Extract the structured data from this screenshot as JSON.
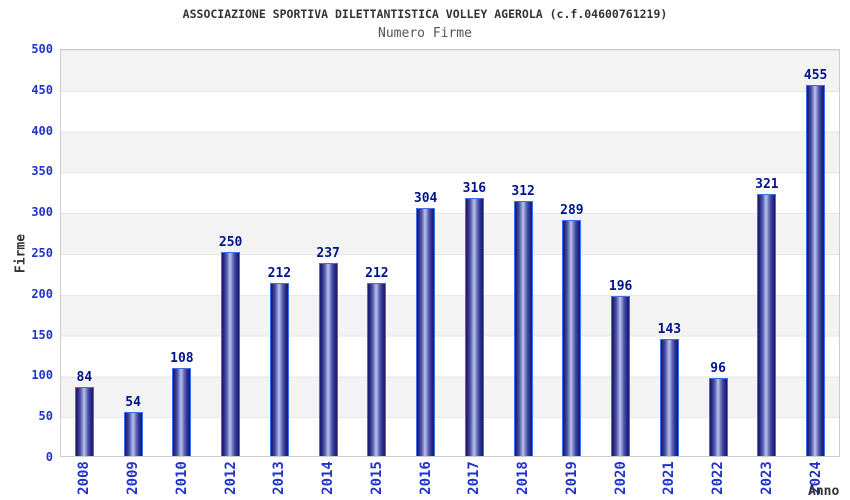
{
  "chart_data": {
    "type": "bar",
    "title": "ASSOCIAZIONE SPORTIVA DILETTANTISTICA VOLLEY AGEROLA (c.f.04600761219)",
    "subtitle": "Numero Firme",
    "xlabel": "Anno",
    "ylabel": "Firme",
    "categories": [
      "2008",
      "2009",
      "2010",
      "2012",
      "2013",
      "2014",
      "2015",
      "2016",
      "2017",
      "2018",
      "2019",
      "2020",
      "2021",
      "2022",
      "2023",
      "2024"
    ],
    "values": [
      84,
      54,
      108,
      250,
      212,
      237,
      212,
      304,
      316,
      312,
      289,
      196,
      143,
      96,
      321,
      455
    ],
    "ylim": [
      0,
      500
    ],
    "ytick_step": 50,
    "yticks": [
      0,
      50,
      100,
      150,
      200,
      250,
      300,
      350,
      400,
      450,
      500
    ],
    "grid": "horizontal-bands",
    "legend_position": "none",
    "colors": {
      "bar_dark": "#1a1a6b",
      "bar_light": "#bcc4f0",
      "bar_outline": "#3d6ef0",
      "value_label": "#001489",
      "axis_tick_label": "#2233cc",
      "axis_title": "#333333",
      "chart_title": "#333333",
      "chart_subtitle": "#555555",
      "band_fill": "#f3f3f3",
      "plot_border": "#cccccc",
      "background": "#ffffff"
    }
  }
}
